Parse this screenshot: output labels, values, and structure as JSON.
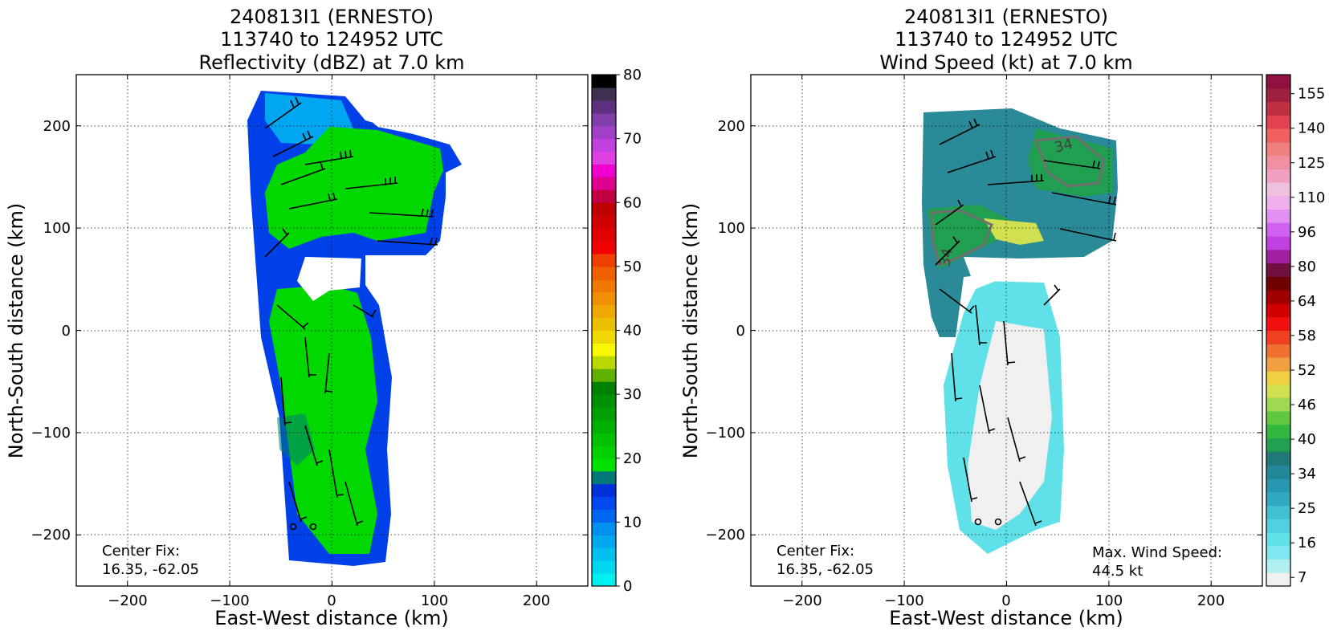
{
  "chart_data": [
    {
      "type": "heatmap",
      "title_lines": [
        "240813I1 (ERNESTO)",
        "113740 to 124952 UTC",
        "Reflectivity (dBZ) at 7.0 km"
      ],
      "xlabel": "East-West distance (km)",
      "ylabel": "North-South distance (km)",
      "xlim": [
        -250,
        250
      ],
      "ylim": [
        -250,
        250
      ],
      "xticks": [
        -200,
        -100,
        0,
        100,
        200
      ],
      "yticks": [
        -200,
        -100,
        0,
        100,
        200
      ],
      "xtick_labels": [
        "−200",
        "−100",
        "0",
        "100",
        "200"
      ],
      "ytick_labels": [
        "−200",
        "−100",
        "0",
        "100",
        "200"
      ],
      "grid": true,
      "annotations": {
        "center_fix_label": "Center Fix:",
        "center_fix_value": "16.35, -62.05"
      },
      "colorbar": {
        "range": [
          0,
          80
        ],
        "ticks": [
          0,
          10,
          20,
          30,
          40,
          50,
          60,
          70,
          80
        ],
        "tick_labels": [
          "0",
          "10",
          "20",
          "30",
          "40",
          "50",
          "60",
          "70",
          "80"
        ],
        "colors": [
          "#00f0f0",
          "#00d8f0",
          "#00c0f0",
          "#00a8f0",
          "#0090f0",
          "#0068f0",
          "#0048f0",
          "#0030d8",
          "#007878",
          "#00e000",
          "#00d000",
          "#00c000",
          "#00b000",
          "#00a000",
          "#009000",
          "#008000",
          "#60b000",
          "#b8d800",
          "#f8f800",
          "#f0d800",
          "#e8c000",
          "#f0a800",
          "#f09000",
          "#f07800",
          "#f06000",
          "#f04000",
          "#f00000",
          "#e00000",
          "#d00000",
          "#c00000",
          "#c00040",
          "#e00090",
          "#f000d0",
          "#e040e0",
          "#c040e0",
          "#a040c8",
          "#8040a8",
          "#603080",
          "#403050",
          "#000000"
        ]
      }
    },
    {
      "type": "heatmap",
      "title_lines": [
        "240813I1 (ERNESTO)",
        "113740 to 124952 UTC",
        "Wind Speed (kt) at 7.0 km"
      ],
      "xlabel": "East-West distance (km)",
      "ylabel": "North-South distance (km)",
      "xlim": [
        -250,
        250
      ],
      "ylim": [
        -250,
        250
      ],
      "xticks": [
        -200,
        -100,
        0,
        100,
        200
      ],
      "yticks": [
        -200,
        -100,
        0,
        100,
        200
      ],
      "xtick_labels": [
        "−200",
        "−100",
        "0",
        "100",
        "200"
      ],
      "ytick_labels": [
        "−200",
        "−100",
        "0",
        "100",
        "200"
      ],
      "grid": true,
      "contour_labels": [
        "34",
        "34"
      ],
      "annotations": {
        "center_fix_label": "Center Fix:",
        "center_fix_value": "16.35, -62.05",
        "max_wind_label": "Max. Wind Speed:",
        "max_wind_value": "44.5 kt"
      },
      "colorbar": {
        "tick_labels": [
          "7",
          "16",
          "25",
          "34",
          "40",
          "46",
          "52",
          "58",
          "64",
          "80",
          "96",
          "110",
          "125",
          "140",
          "155"
        ],
        "colors": [
          "#f0f0f0",
          "#b0f0f0",
          "#80e8f0",
          "#60e0e8",
          "#50d0e0",
          "#40c0d0",
          "#30a8c0",
          "#2898b0",
          "#208898",
          "#207878",
          "#20a050",
          "#30b840",
          "#60c840",
          "#a0d850",
          "#d0e050",
          "#f0d040",
          "#f0a040",
          "#f07030",
          "#f04020",
          "#f01010",
          "#d00000",
          "#a00000",
          "#700000",
          "#701040",
          "#a020a0",
          "#c040e0",
          "#d060f0",
          "#e090f0",
          "#f0b0f0",
          "#f0c0e0",
          "#f0a0c0",
          "#f090a0",
          "#f08080",
          "#f06060",
          "#e04050",
          "#c03040",
          "#a02040",
          "#901040"
        ]
      }
    }
  ]
}
